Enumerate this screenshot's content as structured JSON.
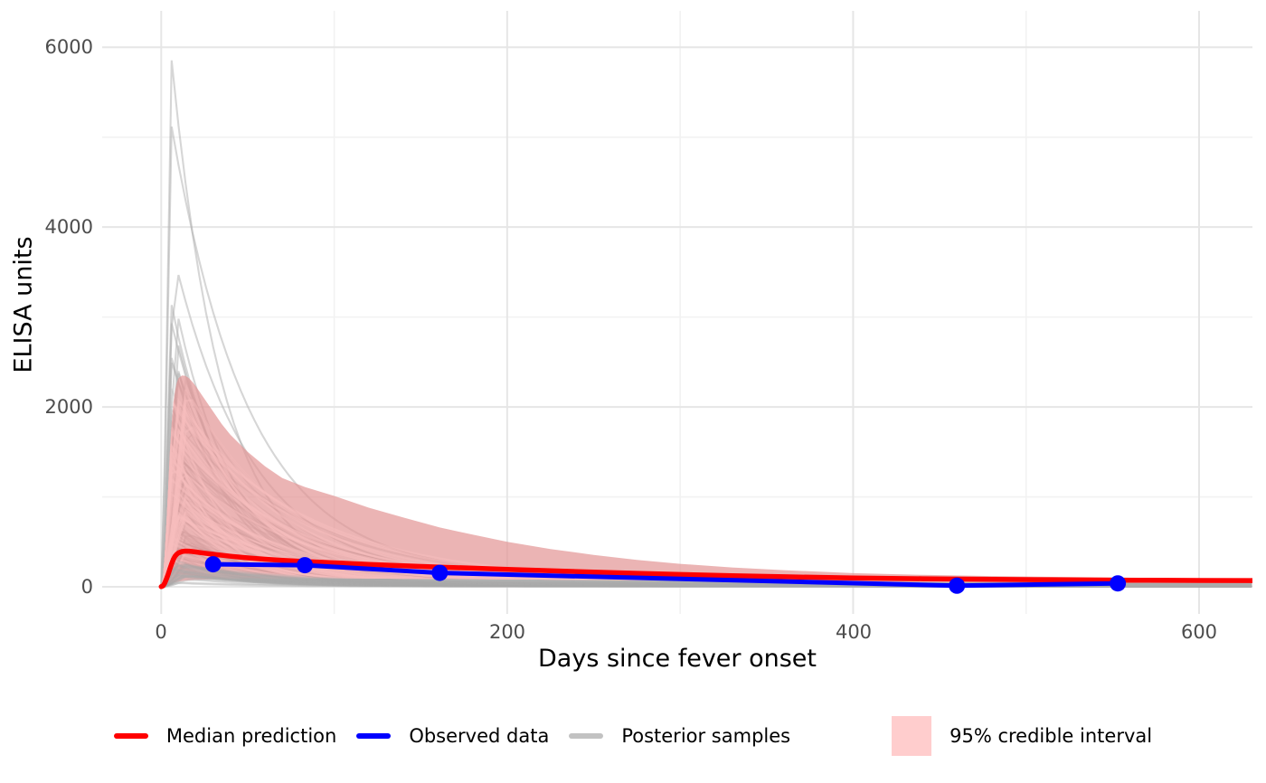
{
  "chart_data": {
    "type": "line",
    "title": "",
    "xlabel": "Days since fever onset",
    "ylabel": "ELISA units",
    "x_ticks": [
      0,
      200,
      400,
      600
    ],
    "x_tick_labels": [
      "0",
      "200",
      "400",
      "600"
    ],
    "x_minor_ticks": [
      100,
      300,
      500
    ],
    "y_ticks": [
      0,
      2000,
      4000,
      6000
    ],
    "y_tick_labels": [
      "0",
      "2000",
      "4000",
      "6000"
    ],
    "y_minor_ticks": [
      1000,
      3000,
      5000
    ],
    "xlim": [
      -31,
      632
    ],
    "ylim": [
      -300,
      6400
    ],
    "grid": true,
    "legend_position": "bottom",
    "series": [
      {
        "name": "Median prediction",
        "type": "line",
        "color": "#ff0000",
        "points": [
          [
            0,
            2
          ],
          [
            1,
            10
          ],
          [
            2,
            40
          ],
          [
            3,
            85
          ],
          [
            4,
            140
          ],
          [
            5,
            200
          ],
          [
            6,
            255
          ],
          [
            7,
            305
          ],
          [
            8,
            340
          ],
          [
            9,
            362
          ],
          [
            10,
            377
          ],
          [
            12,
            392
          ],
          [
            14,
            397
          ],
          [
            16,
            396
          ],
          [
            18,
            392
          ],
          [
            20,
            387
          ],
          [
            25,
            374
          ],
          [
            30,
            362
          ],
          [
            40,
            340
          ],
          [
            50,
            322
          ],
          [
            60,
            307
          ],
          [
            70,
            295
          ],
          [
            83,
            282
          ],
          [
            100,
            266
          ],
          [
            120,
            249
          ],
          [
            140,
            234
          ],
          [
            161,
            219
          ],
          [
            180,
            207
          ],
          [
            200,
            193
          ],
          [
            225,
            178
          ],
          [
            250,
            163
          ],
          [
            275,
            150
          ],
          [
            300,
            137
          ],
          [
            330,
            124
          ],
          [
            360,
            112
          ],
          [
            400,
            98
          ],
          [
            440,
            89
          ],
          [
            480,
            82
          ],
          [
            520,
            77
          ],
          [
            560,
            73
          ],
          [
            600,
            70
          ],
          [
            632,
            69
          ]
        ]
      },
      {
        "name": "Observed data",
        "type": "line+points",
        "color": "#0000ff",
        "points": [
          [
            30,
            250
          ],
          [
            83,
            240
          ],
          [
            161,
            155
          ],
          [
            460,
            12
          ],
          [
            553,
            38
          ]
        ]
      },
      {
        "name": "Posterior samples",
        "type": "spaghetti",
        "color": "#b9b9b9",
        "count": 110,
        "peak_day_range": [
          4,
          15
        ],
        "peak_range": [
          140,
          2350
        ],
        "tail_range_day600": [
          10,
          150
        ],
        "explicit_peaks": [
          [
            5,
            6050
          ],
          [
            5,
            5230
          ],
          [
            7,
            3700
          ],
          [
            5,
            3230
          ],
          [
            8,
            3160
          ],
          [
            6,
            2930
          ],
          [
            9,
            2760
          ],
          [
            5,
            2620
          ],
          [
            8,
            2560
          ],
          [
            6,
            2490
          ],
          [
            9,
            2430
          ]
        ]
      },
      {
        "name": "95% credible interval",
        "type": "band",
        "color": "#ffcdcd",
        "fill": "#e29494",
        "upper": [
          [
            0,
            10
          ],
          [
            1,
            120
          ],
          [
            2,
            350
          ],
          [
            3,
            700
          ],
          [
            4,
            1100
          ],
          [
            5,
            1500
          ],
          [
            6,
            1820
          ],
          [
            7,
            2050
          ],
          [
            8,
            2180
          ],
          [
            9,
            2270
          ],
          [
            10,
            2320
          ],
          [
            12,
            2350
          ],
          [
            14,
            2345
          ],
          [
            16,
            2320
          ],
          [
            18,
            2280
          ],
          [
            20,
            2230
          ],
          [
            25,
            2090
          ],
          [
            30,
            1950
          ],
          [
            35,
            1810
          ],
          [
            40,
            1690
          ],
          [
            50,
            1500
          ],
          [
            60,
            1340
          ],
          [
            70,
            1210
          ],
          [
            83,
            1110
          ],
          [
            100,
            1010
          ],
          [
            120,
            880
          ],
          [
            140,
            770
          ],
          [
            161,
            660
          ],
          [
            180,
            580
          ],
          [
            200,
            500
          ],
          [
            225,
            420
          ],
          [
            250,
            355
          ],
          [
            275,
            300
          ],
          [
            300,
            255
          ],
          [
            330,
            215
          ],
          [
            360,
            185
          ],
          [
            400,
            152
          ],
          [
            440,
            133
          ],
          [
            480,
            120
          ],
          [
            520,
            110
          ],
          [
            560,
            102
          ],
          [
            600,
            96
          ],
          [
            632,
            93
          ]
        ],
        "lower": [
          [
            0,
            0
          ],
          [
            1,
            2
          ],
          [
            2,
            6
          ],
          [
            3,
            12
          ],
          [
            4,
            20
          ],
          [
            5,
            28
          ],
          [
            6,
            36
          ],
          [
            8,
            48
          ],
          [
            10,
            57
          ],
          [
            12,
            63
          ],
          [
            14,
            68
          ],
          [
            16,
            71
          ],
          [
            18,
            74
          ],
          [
            20,
            76
          ],
          [
            25,
            80
          ],
          [
            30,
            83
          ],
          [
            40,
            87
          ],
          [
            50,
            90
          ],
          [
            60,
            91
          ],
          [
            70,
            92
          ],
          [
            83,
            93
          ],
          [
            100,
            93
          ],
          [
            120,
            91
          ],
          [
            140,
            89
          ],
          [
            161,
            87
          ],
          [
            180,
            85
          ],
          [
            200,
            82
          ],
          [
            225,
            79
          ],
          [
            250,
            76
          ],
          [
            275,
            72
          ],
          [
            300,
            69
          ],
          [
            330,
            65
          ],
          [
            360,
            61
          ],
          [
            400,
            57
          ],
          [
            440,
            53
          ],
          [
            480,
            50
          ],
          [
            520,
            47
          ],
          [
            560,
            44
          ],
          [
            600,
            42
          ],
          [
            632,
            41
          ]
        ]
      }
    ],
    "colors": {
      "grid_major": "#e6e6e6",
      "grid_minor": "#f2f2f2",
      "tick_text": "#4d4d4d",
      "background": "#ffffff"
    }
  }
}
